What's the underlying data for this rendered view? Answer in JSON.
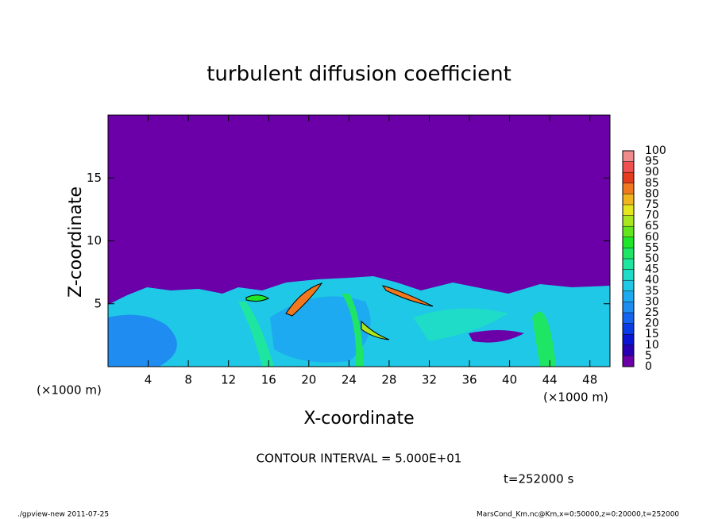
{
  "chart_data": {
    "type": "contour",
    "title": "turbulent diffusion coefficient",
    "xlabel": "X-coordinate",
    "ylabel": "Z-coordinate",
    "xlim": [
      0,
      50
    ],
    "ylim": [
      0,
      20
    ],
    "xticks": [
      4,
      8,
      12,
      16,
      20,
      24,
      28,
      32,
      36,
      40,
      44,
      48
    ],
    "yticks": [
      5,
      10,
      15
    ],
    "x_unit_label": "(×1000 m)",
    "y_unit_label": "(×1000 m)",
    "annotations": [
      "CONTOUR INTERVAL = 5.000E+01",
      "t=252000 s",
      "./gpview-new  2011-07-25",
      "MarsCond_Km.nc@Km,x=0:50000,z=0:20000,t=252000"
    ],
    "colorbar": {
      "levels": [
        0,
        5,
        10,
        15,
        20,
        25,
        30,
        35,
        40,
        45,
        50,
        55,
        60,
        65,
        70,
        75,
        80,
        85,
        90,
        95,
        100
      ],
      "colors": [
        "#6b00a8",
        "#2800b4",
        "#0a14d2",
        "#0a3ce6",
        "#1464f0",
        "#1e8cf0",
        "#1eaaf0",
        "#1ec8e6",
        "#1edcc8",
        "#1ee6a0",
        "#1ee664",
        "#1ee628",
        "#64e61e",
        "#aae61e",
        "#e6e61e",
        "#f0b41e",
        "#f0781e",
        "#e63c1e",
        "#f05050",
        "#f08c8c"
      ]
    }
  }
}
